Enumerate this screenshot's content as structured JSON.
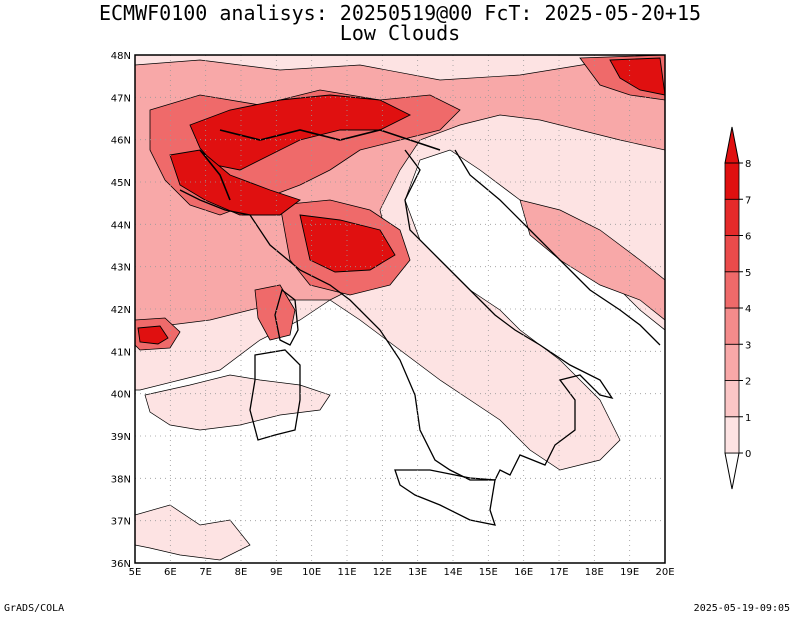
{
  "title_line1": "ECMWF0100 analisys: 20250519@00 FcT: 2025-05-20+15",
  "title_line2": "Low Clouds",
  "footer_left": "GrADS/COLA",
  "footer_right": "2025-05-19-09:05",
  "map": {
    "lon_range": [
      5,
      20
    ],
    "lat_range": [
      36,
      48
    ],
    "lon_ticks": [
      "5E",
      "6E",
      "7E",
      "8E",
      "9E",
      "10E",
      "11E",
      "12E",
      "13E",
      "14E",
      "15E",
      "16E",
      "17E",
      "18E",
      "19E",
      "20E"
    ],
    "lat_ticks": [
      "36N",
      "37N",
      "38N",
      "39N",
      "40N",
      "41N",
      "42N",
      "43N",
      "44N",
      "45N",
      "46N",
      "47N",
      "48N"
    ],
    "grid": "dotted"
  },
  "colorbar": {
    "levels": [
      "0",
      "1",
      "2",
      "3",
      "4",
      "5",
      "6",
      "7",
      "8"
    ],
    "colors": [
      "#fde3e3",
      "#fbc6c6",
      "#f8a8a8",
      "#f48b8b",
      "#ef6a6a",
      "#ea4b4b",
      "#e52a2a",
      "#e01010"
    ]
  }
}
